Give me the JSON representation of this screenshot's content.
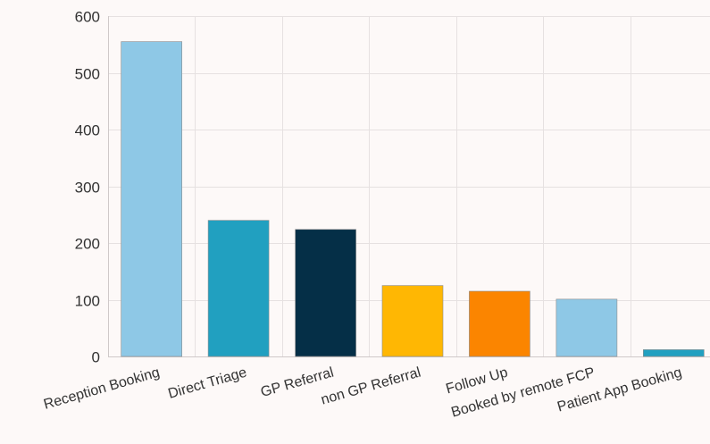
{
  "chart_data": {
    "type": "bar",
    "title": "",
    "xlabel": "",
    "ylabel": "",
    "categories": [
      "Reception Booking",
      "Direct Triage",
      "GP Referral",
      "non GP Referral",
      "Follow Up",
      "Booked by remote FCP",
      "Patient App Booking"
    ],
    "values": [
      555,
      240,
      224,
      125,
      115,
      101,
      12
    ],
    "colors": [
      "#8ec8e6",
      "#21a0c0",
      "#052f47",
      "#ffb703",
      "#fb8500",
      "#8ec8e6",
      "#21a0c0"
    ],
    "ylim": [
      0,
      600
    ],
    "yticks": [
      0,
      100,
      200,
      300,
      400,
      500,
      600
    ],
    "grid": true,
    "legend": "none"
  }
}
